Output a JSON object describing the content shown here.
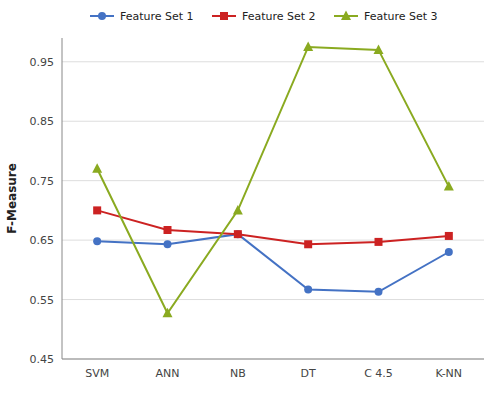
{
  "chart_data": {
    "type": "line",
    "ylabel": "F-Measure",
    "categories": [
      "SVM",
      "ANN",
      "NB",
      "DT",
      "C 4.5",
      "K-NN"
    ],
    "series": [
      {
        "name": "Feature Set 1",
        "color": "#4472C4",
        "marker": "circle",
        "values": [
          0.648,
          0.643,
          0.66,
          0.567,
          0.563,
          0.63
        ]
      },
      {
        "name": "Feature Set 2",
        "color": "#CC2222",
        "marker": "square",
        "values": [
          0.7,
          0.667,
          0.66,
          0.643,
          0.647,
          0.657
        ]
      },
      {
        "name": "Feature Set 3",
        "color": "#8AAA20",
        "marker": "triangle",
        "values": [
          0.77,
          0.527,
          0.7,
          0.975,
          0.97,
          0.74
        ]
      }
    ],
    "ylim": [
      0.45,
      0.99
    ],
    "yticks": [
      0.45,
      0.55,
      0.65,
      0.75,
      0.85,
      0.95
    ],
    "grid": true,
    "legend": "upper center"
  }
}
